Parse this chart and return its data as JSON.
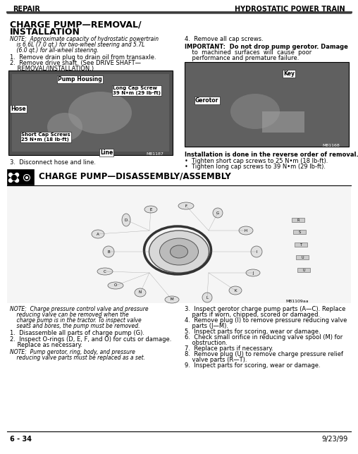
{
  "title_left": "REPAIR",
  "title_right": "HYDROSTATIC POWER TRAIN",
  "section1_title_line1": "CHARGE PUMP—REMOVAL/",
  "section1_title_line2": "INSTALLATION",
  "note1_line1": "NOTE:  Approximate capacity of hydrostatic powertrain",
  "note1_line2": "    is 6.6L (7.0 qt.) for two-wheel steering and 5.7L",
  "note1_line3": "    (6.0 qt.) for all-wheel steering.",
  "step1": "1.  Remove drain plug to drain oil from transaxle.",
  "step2_line1": "2.  Remove drive shaft. (See DRIVE SHAFT—",
  "step2_line2": "    REMOVAL/INSTALLATION.)",
  "step3": "3.  Disconnect hose and line.",
  "step4": "4.  Remove all cap screws.",
  "important_line1": "IMPORTANT:  Do not drop pump gerotor. Damage",
  "important_line2": "    to  machined  surfaces  will  cause  poor",
  "important_line3": "    performance and premature failure.",
  "installation_note": "Installation is done in the reverse order of removal.",
  "bullet1": "•  Tighten short cap screws to 25 N•m (18 lb-ft).",
  "bullet2": "•  Tighten long cap screws to 39 N•m (29 lb-ft).",
  "section2_title": "CHARGE PUMP—DISASSEMBLY/ASSEMBLY",
  "note_bottom1_line1": "NOTE:  Charge pressure control valve and pressure",
  "note_bottom1_line2": "    reducing valve can be removed when the",
  "note_bottom1_line3": "    charge pump is in the tractor. To inspect valve",
  "note_bottom1_line4": "    seats and bores, the pump must be removed.",
  "step_b1": "1.  Disassemble all parts of charge pump (G).",
  "step_b2_line1": "2.  Inspect O-rings (D, E, F, and O) for cuts or damage.",
  "step_b2_line2": "    Replace as necessary.",
  "note_bottom2_line1": "NOTE:  Pump gerotor, ring, body, and pressure",
  "note_bottom2_line2": "    reducing valve parts must be replaced as a set.",
  "steps_bottom_right": [
    "3.  Inspect gerotor charge pump parts (A—C). Replace",
    "    parts if worn, chipped, scored or damaged.",
    "4.  Remove plug (I) to remove pressure reducing valve",
    "    parts (J—M).",
    "5.  Inspect parts for scoring, wear or damage.",
    "6.  Check small orifice in reducing valve spool (M) for",
    "    obstruction.",
    "7.  Replace parts if necessary.",
    "8.  Remove plug (U) to remove charge pressure relief",
    "    valve parts (R—T).",
    "9.  Inspect parts for scoring, wear or damage."
  ],
  "page_number": "6 - 34",
  "date": "9/23/99",
  "bg_color": "#ffffff",
  "header_line_color": "#555555",
  "img1_label1": "Pump Housing",
  "img1_label2_line1": "Long Cap Screw",
  "img1_label2_line2": "39 N•m (29 lb-ft)",
  "img1_label3": "Hose",
  "img1_label4_line1": "Short Cap Screws",
  "img1_label4_line2": "25 N•m (18 lb-ft)",
  "img1_label5": "Line",
  "img1_code": "M81187",
  "img2_label1": "Gerotor",
  "img2_label2": "Key",
  "img2_code": "M81168",
  "diag_code": "M81109aa"
}
